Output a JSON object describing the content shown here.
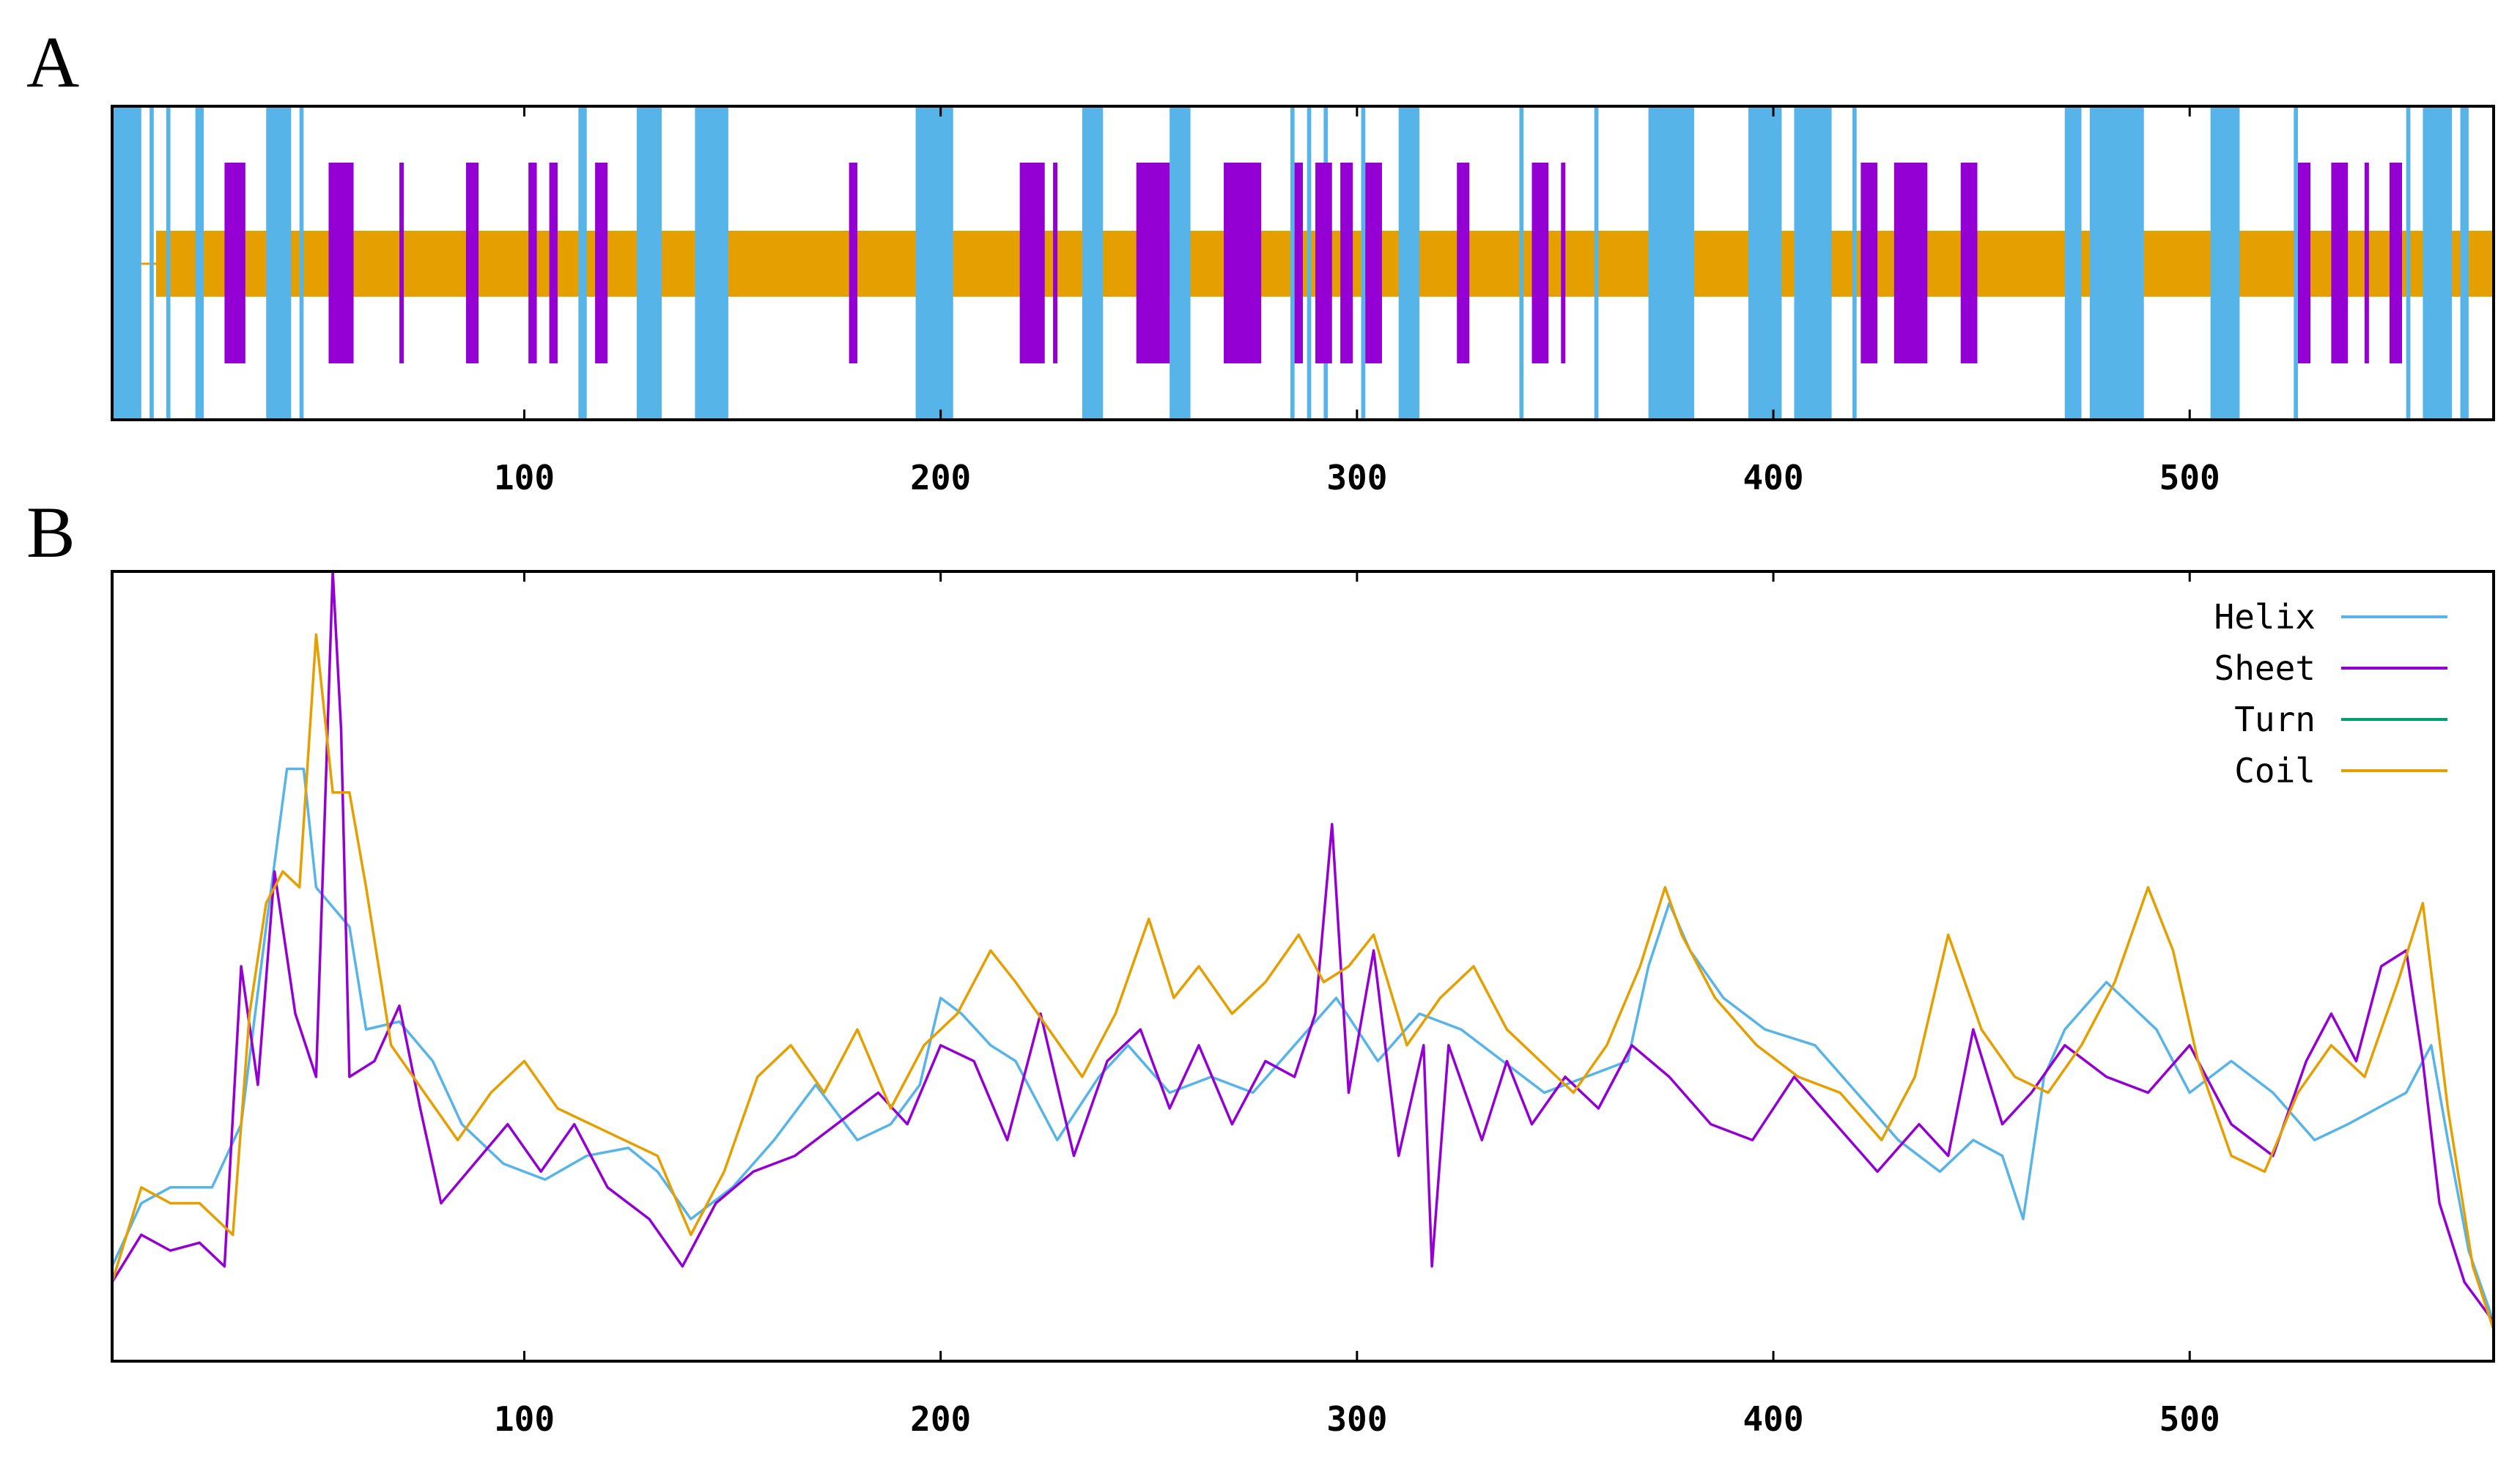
{
  "panels": {
    "a": {
      "letter": "A"
    },
    "b": {
      "letter": "B"
    }
  },
  "colors": {
    "helix": "#56b4e9",
    "sheet": "#9400d3",
    "turn": "#009e73",
    "coil": "#e69f00"
  },
  "chart_data": [
    {
      "type": "heatmap",
      "description_of_tracks": [
        "helix",
        "sheet",
        "coil"
      ],
      "xlim": [
        1,
        573
      ],
      "x_ticks": [
        100,
        200,
        300,
        400,
        500
      ],
      "tick_labels": [
        "100",
        "200",
        "300",
        "400",
        "500"
      ],
      "helix_segments": [
        [
          1,
          8
        ],
        [
          10,
          11
        ],
        [
          14,
          15
        ],
        [
          21,
          23
        ],
        [
          38,
          44
        ],
        [
          46,
          47
        ],
        [
          113,
          115
        ],
        [
          127,
          133
        ],
        [
          141,
          149
        ],
        [
          194,
          203
        ],
        [
          234,
          239
        ],
        [
          255,
          260
        ],
        [
          284,
          285
        ],
        [
          288,
          289
        ],
        [
          292,
          293
        ],
        [
          301,
          302
        ],
        [
          310,
          315
        ],
        [
          339,
          340
        ],
        [
          357,
          358
        ],
        [
          370,
          381
        ],
        [
          394,
          402
        ],
        [
          405,
          414
        ],
        [
          419,
          420
        ],
        [
          470,
          474
        ],
        [
          476,
          489
        ],
        [
          505,
          512
        ],
        [
          525,
          526
        ],
        [
          552,
          553
        ],
        [
          556,
          563
        ],
        [
          565,
          567
        ]
      ],
      "sheet_segments": [
        [
          28,
          33
        ],
        [
          53,
          59
        ],
        [
          70,
          71
        ],
        [
          86,
          89
        ],
        [
          101,
          103
        ],
        [
          106,
          108
        ],
        [
          117,
          120
        ],
        [
          178,
          180
        ],
        [
          219,
          225
        ],
        [
          227,
          228
        ],
        [
          247,
          255
        ],
        [
          268,
          277
        ],
        [
          285,
          287
        ],
        [
          290,
          294
        ],
        [
          296,
          299
        ],
        [
          302,
          306
        ],
        [
          324,
          327
        ],
        [
          342,
          346
        ],
        [
          349,
          350
        ],
        [
          421,
          425
        ],
        [
          429,
          437
        ],
        [
          445,
          449
        ],
        [
          526,
          529
        ],
        [
          534,
          538
        ],
        [
          542,
          543
        ],
        [
          548,
          551
        ]
      ],
      "coil_range": [
        1,
        573
      ]
    },
    {
      "type": "line",
      "xlim": [
        1,
        573
      ],
      "ylim": [
        0,
        100
      ],
      "x_ticks": [
        100,
        200,
        300,
        400,
        500
      ],
      "tick_labels": [
        "100",
        "200",
        "300",
        "400",
        "500"
      ],
      "legend_position": "top-right",
      "series": [
        {
          "name": "Helix",
          "key": "helix",
          "points": [
            [
              1,
              12
            ],
            [
              8,
              20
            ],
            [
              15,
              22
            ],
            [
              25,
              22
            ],
            [
              32,
              30
            ],
            [
              38,
              55
            ],
            [
              43,
              75
            ],
            [
              47,
              75
            ],
            [
              50,
              60
            ],
            [
              58,
              55
            ],
            [
              62,
              42
            ],
            [
              70,
              43
            ],
            [
              78,
              38
            ],
            [
              85,
              30
            ],
            [
              95,
              25
            ],
            [
              105,
              23
            ],
            [
              115,
              26
            ],
            [
              125,
              27
            ],
            [
              132,
              24
            ],
            [
              140,
              18
            ],
            [
              150,
              22
            ],
            [
              160,
              28
            ],
            [
              170,
              35
            ],
            [
              180,
              28
            ],
            [
              188,
              30
            ],
            [
              195,
              35
            ],
            [
              200,
              46
            ],
            [
              205,
              44
            ],
            [
              212,
              40
            ],
            [
              218,
              38
            ],
            [
              228,
              28
            ],
            [
              238,
              36
            ],
            [
              245,
              40
            ],
            [
              255,
              34
            ],
            [
              265,
              36
            ],
            [
              275,
              34
            ],
            [
              285,
              40
            ],
            [
              295,
              46
            ],
            [
              305,
              38
            ],
            [
              315,
              44
            ],
            [
              325,
              42
            ],
            [
              335,
              38
            ],
            [
              345,
              34
            ],
            [
              355,
              36
            ],
            [
              365,
              38
            ],
            [
              370,
              50
            ],
            [
              375,
              58
            ],
            [
              380,
              52
            ],
            [
              388,
              46
            ],
            [
              398,
              42
            ],
            [
              410,
              40
            ],
            [
              420,
              34
            ],
            [
              430,
              28
            ],
            [
              440,
              24
            ],
            [
              448,
              28
            ],
            [
              455,
              26
            ],
            [
              460,
              18
            ],
            [
              465,
              36
            ],
            [
              470,
              42
            ],
            [
              480,
              48
            ],
            [
              492,
              42
            ],
            [
              500,
              34
            ],
            [
              510,
              38
            ],
            [
              520,
              34
            ],
            [
              530,
              28
            ],
            [
              538,
              30
            ],
            [
              545,
              32
            ],
            [
              552,
              34
            ],
            [
              558,
              40
            ],
            [
              562,
              28
            ],
            [
              567,
              14
            ],
            [
              573,
              5
            ]
          ]
        },
        {
          "name": "Sheet",
          "key": "sheet",
          "points": [
            [
              1,
              10
            ],
            [
              8,
              16
            ],
            [
              15,
              14
            ],
            [
              22,
              15
            ],
            [
              28,
              12
            ],
            [
              32,
              50
            ],
            [
              36,
              35
            ],
            [
              40,
              62
            ],
            [
              45,
              44
            ],
            [
              50,
              36
            ],
            [
              54,
              100
            ],
            [
              56,
              80
            ],
            [
              58,
              36
            ],
            [
              64,
              38
            ],
            [
              70,
              45
            ],
            [
              75,
              32
            ],
            [
              80,
              20
            ],
            [
              88,
              25
            ],
            [
              96,
              30
            ],
            [
              104,
              24
            ],
            [
              112,
              30
            ],
            [
              120,
              22
            ],
            [
              130,
              18
            ],
            [
              138,
              12
            ],
            [
              146,
              20
            ],
            [
              155,
              24
            ],
            [
              165,
              26
            ],
            [
              175,
              30
            ],
            [
              185,
              34
            ],
            [
              192,
              30
            ],
            [
              200,
              40
            ],
            [
              208,
              38
            ],
            [
              216,
              28
            ],
            [
              224,
              44
            ],
            [
              232,
              26
            ],
            [
              240,
              38
            ],
            [
              248,
              42
            ],
            [
              255,
              32
            ],
            [
              262,
              40
            ],
            [
              270,
              30
            ],
            [
              278,
              38
            ],
            [
              285,
              36
            ],
            [
              290,
              44
            ],
            [
              294,
              68
            ],
            [
              298,
              34
            ],
            [
              304,
              52
            ],
            [
              310,
              26
            ],
            [
              316,
              40
            ],
            [
              318,
              12
            ],
            [
              322,
              40
            ],
            [
              330,
              28
            ],
            [
              336,
              38
            ],
            [
              342,
              30
            ],
            [
              350,
              36
            ],
            [
              358,
              32
            ],
            [
              366,
              40
            ],
            [
              375,
              36
            ],
            [
              385,
              30
            ],
            [
              395,
              28
            ],
            [
              405,
              36
            ],
            [
              415,
              30
            ],
            [
              425,
              24
            ],
            [
              435,
              30
            ],
            [
              442,
              26
            ],
            [
              448,
              42
            ],
            [
              455,
              30
            ],
            [
              462,
              34
            ],
            [
              470,
              40
            ],
            [
              480,
              36
            ],
            [
              490,
              34
            ],
            [
              500,
              40
            ],
            [
              510,
              30
            ],
            [
              520,
              26
            ],
            [
              528,
              38
            ],
            [
              534,
              44
            ],
            [
              540,
              38
            ],
            [
              546,
              50
            ],
            [
              552,
              52
            ],
            [
              556,
              38
            ],
            [
              560,
              20
            ],
            [
              566,
              10
            ],
            [
              573,
              5
            ]
          ]
        },
        {
          "name": "Turn",
          "key": "turn",
          "points": []
        },
        {
          "name": "Coil",
          "key": "coil",
          "points": [
            [
              1,
              10
            ],
            [
              8,
              22
            ],
            [
              15,
              20
            ],
            [
              22,
              20
            ],
            [
              30,
              16
            ],
            [
              34,
              44
            ],
            [
              38,
              58
            ],
            [
              42,
              62
            ],
            [
              46,
              60
            ],
            [
              50,
              92
            ],
            [
              54,
              72
            ],
            [
              58,
              72
            ],
            [
              62,
              60
            ],
            [
              68,
              40
            ],
            [
              76,
              34
            ],
            [
              84,
              28
            ],
            [
              92,
              34
            ],
            [
              100,
              38
            ],
            [
              108,
              32
            ],
            [
              116,
              30
            ],
            [
              124,
              28
            ],
            [
              132,
              26
            ],
            [
              140,
              16
            ],
            [
              148,
              24
            ],
            [
              156,
              36
            ],
            [
              164,
              40
            ],
            [
              172,
              34
            ],
            [
              180,
              42
            ],
            [
              188,
              32
            ],
            [
              196,
              40
            ],
            [
              204,
              44
            ],
            [
              212,
              52
            ],
            [
              218,
              48
            ],
            [
              226,
              42
            ],
            [
              234,
              36
            ],
            [
              242,
              44
            ],
            [
              250,
              56
            ],
            [
              256,
              46
            ],
            [
              262,
              50
            ],
            [
              270,
              44
            ],
            [
              278,
              48
            ],
            [
              286,
              54
            ],
            [
              292,
              48
            ],
            [
              298,
              50
            ],
            [
              304,
              54
            ],
            [
              312,
              40
            ],
            [
              320,
              46
            ],
            [
              328,
              50
            ],
            [
              336,
              42
            ],
            [
              344,
              38
            ],
            [
              352,
              34
            ],
            [
              360,
              40
            ],
            [
              368,
              50
            ],
            [
              374,
              60
            ],
            [
              378,
              54
            ],
            [
              386,
              46
            ],
            [
              396,
              40
            ],
            [
              406,
              36
            ],
            [
              416,
              34
            ],
            [
              426,
              28
            ],
            [
              434,
              36
            ],
            [
              442,
              54
            ],
            [
              450,
              42
            ],
            [
              458,
              36
            ],
            [
              466,
              34
            ],
            [
              474,
              40
            ],
            [
              482,
              48
            ],
            [
              490,
              60
            ],
            [
              496,
              52
            ],
            [
              502,
              38
            ],
            [
              510,
              26
            ],
            [
              518,
              24
            ],
            [
              526,
              34
            ],
            [
              534,
              40
            ],
            [
              542,
              36
            ],
            [
              550,
              48
            ],
            [
              556,
              58
            ],
            [
              562,
              32
            ],
            [
              568,
              12
            ],
            [
              573,
              4
            ]
          ]
        }
      ]
    }
  ]
}
